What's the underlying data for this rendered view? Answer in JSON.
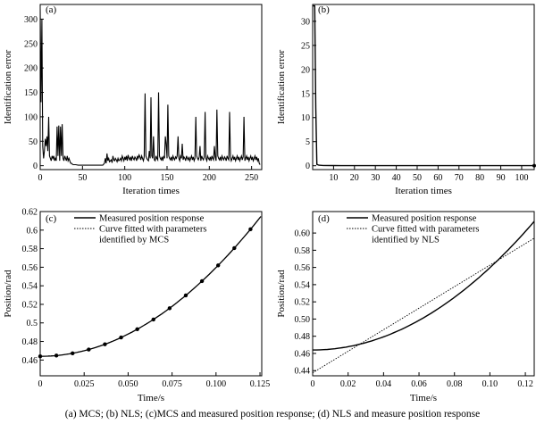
{
  "caption": "(a) MCS; (b) NLS; (c)MCS and measured position response; (d) NLS and measure position response",
  "chart_data": [
    {
      "type": "line",
      "panel_label": "(a)",
      "xlabel": "Iteration times",
      "ylabel": "Identification error",
      "xlim": [
        0,
        262
      ],
      "ylim": [
        -8,
        330
      ],
      "xticks": [
        0,
        50,
        100,
        150,
        200,
        250
      ],
      "yticks": [
        0,
        50,
        100,
        150,
        200,
        250,
        300
      ],
      "xtick_labels": [
        "0",
        "50",
        "100",
        "150",
        "200",
        "250"
      ],
      "ytick_labels": [
        "0",
        "50",
        "100",
        "150",
        "200",
        "250",
        "300"
      ],
      "series": [
        {
          "x": [
            0,
            1,
            2,
            3,
            4,
            5,
            6,
            7,
            8,
            9,
            10,
            11,
            12,
            13,
            14,
            15,
            16,
            17,
            18,
            19,
            20,
            21,
            22,
            23,
            24,
            25,
            26,
            27,
            28,
            29,
            30,
            31,
            32,
            33,
            34,
            35,
            36,
            37,
            38,
            39,
            40,
            42,
            45,
            50,
            55,
            60,
            65,
            70,
            74,
            75,
            76,
            77,
            78,
            79,
            80,
            81,
            82,
            83,
            84,
            85,
            86,
            87,
            88,
            89,
            90,
            91,
            92,
            93,
            94,
            95,
            96,
            97,
            98,
            99,
            100,
            101,
            102,
            103,
            104,
            105,
            106,
            107,
            108,
            109,
            110,
            111,
            112,
            113,
            114,
            115,
            116,
            117,
            118,
            119,
            120,
            121,
            122,
            123,
            124,
            125,
            126,
            127,
            128,
            129,
            130,
            131,
            132,
            133,
            134,
            135,
            136,
            137,
            138,
            139,
            140,
            141,
            142,
            143,
            144,
            145,
            146,
            147,
            148,
            149,
            150,
            151,
            152,
            153,
            154,
            155,
            156,
            157,
            158,
            159,
            160,
            161,
            162,
            163,
            164,
            165,
            166,
            167,
            168,
            169,
            170,
            171,
            172,
            173,
            174,
            175,
            176,
            177,
            178,
            179,
            180,
            181,
            182,
            183,
            184,
            185,
            186,
            187,
            188,
            189,
            190,
            191,
            192,
            193,
            194,
            195,
            196,
            197,
            198,
            199,
            200,
            201,
            202,
            203,
            204,
            205,
            206,
            207,
            208,
            209,
            210,
            211,
            212,
            213,
            214,
            215,
            216,
            217,
            218,
            219,
            220,
            221,
            222,
            223,
            224,
            225,
            226,
            227,
            228,
            229,
            230,
            231,
            232,
            233,
            234,
            235,
            236,
            237,
            238,
            239,
            240,
            241,
            242,
            243,
            244,
            245,
            246,
            247,
            248,
            249,
            250,
            251,
            252,
            253,
            254,
            255,
            256,
            257,
            258,
            259,
            260
          ],
          "y": [
            320,
            130,
            300,
            40,
            15,
            30,
            55,
            40,
            60,
            30,
            100,
            20,
            15,
            10,
            20,
            15,
            20,
            10,
            15,
            10,
            80,
            20,
            82,
            10,
            80,
            20,
            85,
            15,
            10,
            20,
            15,
            10,
            20,
            10,
            15,
            10,
            5,
            5,
            3,
            2,
            2,
            2,
            1,
            1,
            1,
            1,
            1,
            1,
            1,
            3,
            5,
            15,
            5,
            25,
            10,
            15,
            8,
            10,
            12,
            6,
            20,
            12,
            10,
            15,
            12,
            8,
            15,
            10,
            12,
            15,
            10,
            20,
            15,
            10,
            18,
            12,
            20,
            10,
            22,
            15,
            12,
            18,
            10,
            20,
            15,
            12,
            18,
            15,
            10,
            20,
            15,
            22,
            18,
            12,
            20,
            15,
            10,
            18,
            148,
            20,
            15,
            12,
            10,
            30,
            15,
            140,
            20,
            15,
            60,
            12,
            10,
            20,
            15,
            12,
            150,
            20,
            15,
            12,
            18,
            10,
            20,
            15,
            60,
            45,
            15,
            125,
            20,
            15,
            12,
            18,
            10,
            20,
            15,
            12,
            18,
            15,
            20,
            60,
            15,
            10,
            20,
            15,
            45,
            12,
            18,
            15,
            10,
            20,
            15,
            12,
            18,
            10,
            15,
            20,
            12,
            18,
            10,
            15,
            100,
            20,
            15,
            12,
            18,
            40,
            10,
            20,
            15,
            12,
            18,
            110,
            15,
            10,
            20,
            15,
            12,
            18,
            10,
            20,
            15,
            12,
            40,
            18,
            10,
            115,
            20,
            15,
            12,
            18,
            10,
            20,
            15,
            12,
            18,
            15,
            10,
            20,
            15,
            12,
            110,
            18,
            10,
            15,
            20,
            12,
            18,
            10,
            15,
            20,
            12,
            18,
            10,
            15,
            20,
            12,
            18,
            100,
            10,
            15,
            20,
            12,
            18,
            10,
            15,
            20,
            12,
            18,
            10,
            15,
            20,
            12,
            18,
            10,
            15,
            5,
            2
          ]
        }
      ]
    },
    {
      "type": "line",
      "panel_label": "(b)",
      "xlabel": "Iteration times",
      "ylabel": "Identification error",
      "xlim": [
        0,
        106
      ],
      "ylim": [
        -0.8,
        33.5
      ],
      "xticks": [
        10,
        20,
        30,
        40,
        50,
        60,
        70,
        80,
        90,
        100
      ],
      "yticks": [
        0,
        5,
        10,
        15,
        20,
        25,
        30
      ],
      "xtick_labels": [
        "10",
        "20",
        "30",
        "40",
        "50",
        "60",
        "70",
        "80",
        "90",
        "100"
      ],
      "ytick_labels": [
        "0",
        "5",
        "10",
        "15",
        "20",
        "25",
        "30"
      ],
      "series": [
        {
          "x": [
            0,
            1,
            1.5,
            2,
            3,
            5,
            10,
            20,
            40,
            60,
            80,
            100,
            106
          ],
          "y": [
            33.2,
            33.2,
            12,
            0.3,
            0.1,
            0.05,
            0.03,
            0.02,
            0.02,
            0.02,
            0.02,
            0.02,
            0.02
          ]
        }
      ]
    },
    {
      "type": "line",
      "panel_label": "(c)",
      "xlabel": "Time/s",
      "ylabel": "Position/rad",
      "xlim": [
        0,
        0.126
      ],
      "ylim": [
        0.443,
        0.62
      ],
      "xticks": [
        0,
        0.025,
        0.05,
        0.075,
        0.1,
        0.125
      ],
      "yticks": [
        0.46,
        0.48,
        0.5,
        0.52,
        0.54,
        0.56,
        0.58,
        0.6,
        0.62
      ],
      "xtick_labels": [
        "0",
        "0.025",
        "0.050",
        "0.075",
        "0.100",
        "0.125"
      ],
      "ytick_labels": [
        "0.46",
        "0.48",
        "0.5",
        "0.52",
        "0.54",
        "0.56",
        "0.58",
        "0.6",
        "0.62"
      ],
      "legend": [
        "Measured position response",
        "Curve fitted with parameters",
        "identified by MCS"
      ],
      "measured": {
        "x0": 0.464,
        "a": 9.57,
        "t_max": 0.1255
      },
      "fitted_points": {
        "x": [
          0,
          0.0092,
          0.0184,
          0.0276,
          0.0368,
          0.046,
          0.0552,
          0.0644,
          0.0736,
          0.0828,
          0.092,
          0.1012,
          0.1104,
          0.1196
        ],
        "y": [
          0.464,
          0.4648,
          0.4672,
          0.4713,
          0.477,
          0.4843,
          0.4932,
          0.5037,
          0.5158,
          0.5296,
          0.545,
          0.562,
          0.5806,
          0.6009
        ]
      }
    },
    {
      "type": "line",
      "panel_label": "(d)",
      "xlabel": "Time/s",
      "ylabel": "Position/rad",
      "xlim": [
        0,
        0.125
      ],
      "ylim": [
        0.434,
        0.625
      ],
      "xticks": [
        0,
        0.02,
        0.04,
        0.06,
        0.08,
        0.1,
        0.12
      ],
      "yticks": [
        0.44,
        0.46,
        0.48,
        0.5,
        0.52,
        0.54,
        0.56,
        0.58,
        0.6
      ],
      "xtick_labels": [
        "0",
        "0.02",
        "0.04",
        "0.06",
        "0.08",
        "0.10",
        "0.12"
      ],
      "ytick_labels": [
        "0.44",
        "0.46",
        "0.48",
        "0.50",
        "0.52",
        "0.54",
        "0.56",
        "0.58",
        "0.60"
      ],
      "legend": [
        "Measured position response",
        "Curve fitted with parameters",
        "identified by NLS"
      ],
      "measured": {
        "x0": 0.464,
        "a": 9.57,
        "t_max": 0.125
      },
      "fitted_line": {
        "x": [
          0,
          0.125
        ],
        "y": [
          0.4375,
          0.594
        ]
      }
    }
  ]
}
